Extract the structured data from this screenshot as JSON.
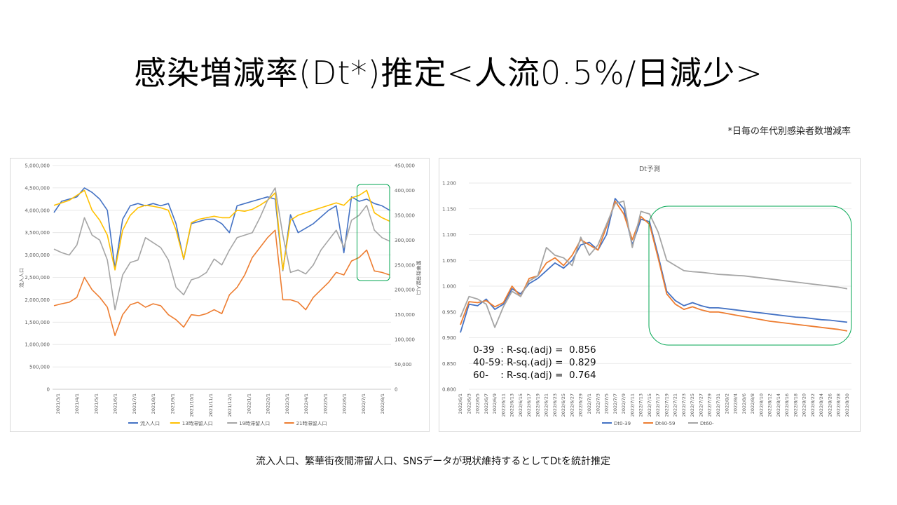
{
  "page": {
    "title": "感染増減率(Dt*)推定<人流0.5%/日減少>",
    "note": "*日毎の年代別感染者数増減率",
    "caption": "流入人口、繁華街夜間滞留人口、SNSデータが現状維持するとしてDtを統計推定"
  },
  "colors": {
    "blue": "#4472c4",
    "yellow": "#ffc000",
    "gray": "#a5a5a5",
    "orange": "#ed7d31",
    "forecast_box": "#00a651"
  },
  "chart_data": [
    {
      "type": "line",
      "title": "",
      "y_left": {
        "label": "流入人口",
        "range": [
          0,
          5000000
        ],
        "ticks": [
          "0",
          "500,000",
          "1,000,000",
          "1,500,000",
          "2,000,000",
          "2,500,000",
          "3,000,000",
          "3,500,000",
          "4,000,000",
          "4,500,000",
          "5,000,000"
        ]
      },
      "y_right": {
        "label": "繁華街滞留人口",
        "range": [
          0,
          450000
        ],
        "ticks": [
          "0",
          "50,000",
          "100,000",
          "150,000",
          "200,000",
          "250,000",
          "300,000",
          "350,000",
          "400,000",
          "450,000"
        ]
      },
      "x": {
        "categories": [
          "2021/3/1",
          "2021/4/1",
          "2021/5/1",
          "2021/6/1",
          "2021/7/1",
          "2021/8/1",
          "2021/9/1",
          "2021/10/1",
          "2021/11/1",
          "2021/12/1",
          "2022/1/1",
          "2022/2/1",
          "2022/3/1",
          "2022/4/1",
          "2022/5/1",
          "2022/6/1",
          "2022/7/1",
          "2022/8/1"
        ]
      },
      "grid": true,
      "legend": "bottom",
      "series": [
        {
          "name": "流入人口",
          "axis": "left",
          "color": "#4472c4",
          "values": [
            3950000,
            4200000,
            4250000,
            4300000,
            4500000,
            4400000,
            4250000,
            4000000,
            2700000,
            3800000,
            4100000,
            4150000,
            4100000,
            4150000,
            4100000,
            4150000,
            3700000,
            2900000,
            3700000,
            3750000,
            3800000,
            3800000,
            3700000,
            3500000,
            4100000,
            4150000,
            4200000,
            4250000,
            4300000,
            4250000,
            2650000,
            3900000,
            3500000,
            3600000,
            3700000,
            3850000,
            4000000,
            4100000,
            3050000,
            4300000,
            4200000,
            4250000,
            4150000,
            4100000,
            4000000
          ],
          "forecast_start": 40
        },
        {
          "name": "13時滞留人口",
          "axis": "right",
          "color": "#ffc000",
          "values": [
            370000,
            375000,
            380000,
            390000,
            400000,
            360000,
            340000,
            310000,
            240000,
            320000,
            350000,
            365000,
            370000,
            368000,
            365000,
            360000,
            320000,
            262000,
            335000,
            342000,
            345000,
            348000,
            345000,
            345000,
            360000,
            358000,
            362000,
            370000,
            380000,
            395000,
            240000,
            340000,
            350000,
            355000,
            360000,
            365000,
            370000,
            375000,
            370000,
            385000,
            390000,
            400000,
            355000,
            345000,
            338000
          ],
          "forecast_start": 40
        },
        {
          "name": "19時滞留人口",
          "axis": "right",
          "color": "#a5a5a5",
          "values": [
            282000,
            275000,
            270000,
            290000,
            345000,
            310000,
            300000,
            260000,
            160000,
            230000,
            255000,
            260000,
            305000,
            295000,
            285000,
            260000,
            205000,
            190000,
            220000,
            225000,
            235000,
            262000,
            250000,
            280000,
            305000,
            310000,
            315000,
            345000,
            380000,
            405000,
            310000,
            235000,
            240000,
            232000,
            250000,
            280000,
            300000,
            320000,
            285000,
            340000,
            350000,
            370000,
            320000,
            305000,
            298000
          ],
          "forecast_start": 40
        },
        {
          "name": "21時滞留人口",
          "axis": "right",
          "color": "#ed7d31",
          "values": [
            168000,
            172000,
            175000,
            185000,
            225000,
            200000,
            185000,
            165000,
            108000,
            150000,
            170000,
            175000,
            165000,
            172000,
            168000,
            150000,
            140000,
            125000,
            150000,
            148000,
            152000,
            160000,
            152000,
            190000,
            205000,
            230000,
            265000,
            285000,
            305000,
            320000,
            180000,
            180000,
            175000,
            160000,
            185000,
            200000,
            215000,
            235000,
            230000,
            258000,
            265000,
            280000,
            238000,
            235000,
            230000
          ],
          "forecast_start": 40
        }
      ]
    },
    {
      "type": "line",
      "title": "Dt予測",
      "y": {
        "range": [
          0.8,
          1.2
        ],
        "ticks": [
          "0.800",
          "0.850",
          "0.900",
          "0.950",
          "1.000",
          "1.050",
          "1.100",
          "1.150",
          "1.200"
        ]
      },
      "x": {
        "categories": [
          "2022/6/1",
          "2022/6/3",
          "2022/6/5",
          "2022/6/7",
          "2022/6/9",
          "2022/6/11",
          "2022/6/13",
          "2022/6/15",
          "2022/6/17",
          "2022/6/19",
          "2022/6/21",
          "2022/6/23",
          "2022/6/25",
          "2022/6/27",
          "2022/6/29",
          "2022/7/1",
          "2022/7/3",
          "2022/7/5",
          "2022/7/7",
          "2022/7/9",
          "2022/7/11",
          "2022/7/13",
          "2022/7/15",
          "2022/7/17",
          "2022/7/19",
          "2022/7/21",
          "2022/7/23",
          "2022/7/25",
          "2022/7/27",
          "2022/7/29",
          "2022/7/31",
          "2022/8/2",
          "2022/8/4",
          "2022/8/6",
          "2022/8/8",
          "2022/8/10",
          "2022/8/12",
          "2022/8/14",
          "2022/8/16",
          "2022/8/18",
          "2022/8/20",
          "2022/8/22",
          "2022/8/24",
          "2022/8/26",
          "2022/8/28",
          "2022/8/30"
        ]
      },
      "grid": true,
      "legend": "bottom",
      "series": [
        {
          "name": "Dt0-39",
          "color": "#4472c4",
          "values": [
            0.91,
            0.965,
            0.962,
            0.975,
            0.955,
            0.965,
            0.995,
            0.985,
            1.005,
            1.015,
            1.03,
            1.045,
            1.035,
            1.05,
            1.08,
            1.085,
            1.07,
            1.1,
            1.17,
            1.15,
            1.08,
            1.13,
            1.125,
            1.06,
            0.99,
            0.972,
            0.962,
            0.968,
            0.962,
            0.958,
            0.958,
            0.956,
            0.954,
            0.952,
            0.95,
            0.948,
            0.946,
            0.944,
            0.942,
            0.94,
            0.939,
            0.937,
            0.935,
            0.934,
            0.932,
            0.93
          ]
        },
        {
          "name": "Dt40-59",
          "color": "#ed7d31",
          "values": [
            0.925,
            0.97,
            0.968,
            0.972,
            0.96,
            0.968,
            1.0,
            0.98,
            1.015,
            1.02,
            1.045,
            1.055,
            1.04,
            1.06,
            1.09,
            1.08,
            1.07,
            1.115,
            1.165,
            1.14,
            1.09,
            1.135,
            1.12,
            1.055,
            0.985,
            0.965,
            0.955,
            0.96,
            0.954,
            0.95,
            0.95,
            0.947,
            0.944,
            0.941,
            0.938,
            0.935,
            0.932,
            0.93,
            0.928,
            0.926,
            0.924,
            0.922,
            0.92,
            0.918,
            0.916,
            0.913
          ]
        },
        {
          "name": "Dt60-",
          "color": "#a5a5a5",
          "values": [
            0.94,
            0.98,
            0.975,
            0.965,
            0.92,
            0.96,
            0.99,
            0.98,
            1.01,
            1.02,
            1.075,
            1.06,
            1.055,
            1.04,
            1.095,
            1.06,
            1.08,
            1.12,
            1.16,
            1.165,
            1.075,
            1.145,
            1.14,
            1.105,
            1.05,
            1.04,
            1.03,
            1.028,
            1.027,
            1.025,
            1.023,
            1.022,
            1.021,
            1.02,
            1.018,
            1.016,
            1.014,
            1.012,
            1.01,
            1.008,
            1.006,
            1.004,
            1.002,
            1.0,
            0.998,
            0.995
          ]
        }
      ],
      "annotations": [
        {
          "group": "0-39",
          "label": "0-39  : R-sq.(adj) =  0.856",
          "value": 0.856
        },
        {
          "group": "40-59",
          "label": "40-59: R-sq.(adj) =  0.829",
          "value": 0.829
        },
        {
          "group": "60-",
          "label": "60-    : R-sq.(adj) =  0.764",
          "value": 0.764
        }
      ]
    }
  ]
}
